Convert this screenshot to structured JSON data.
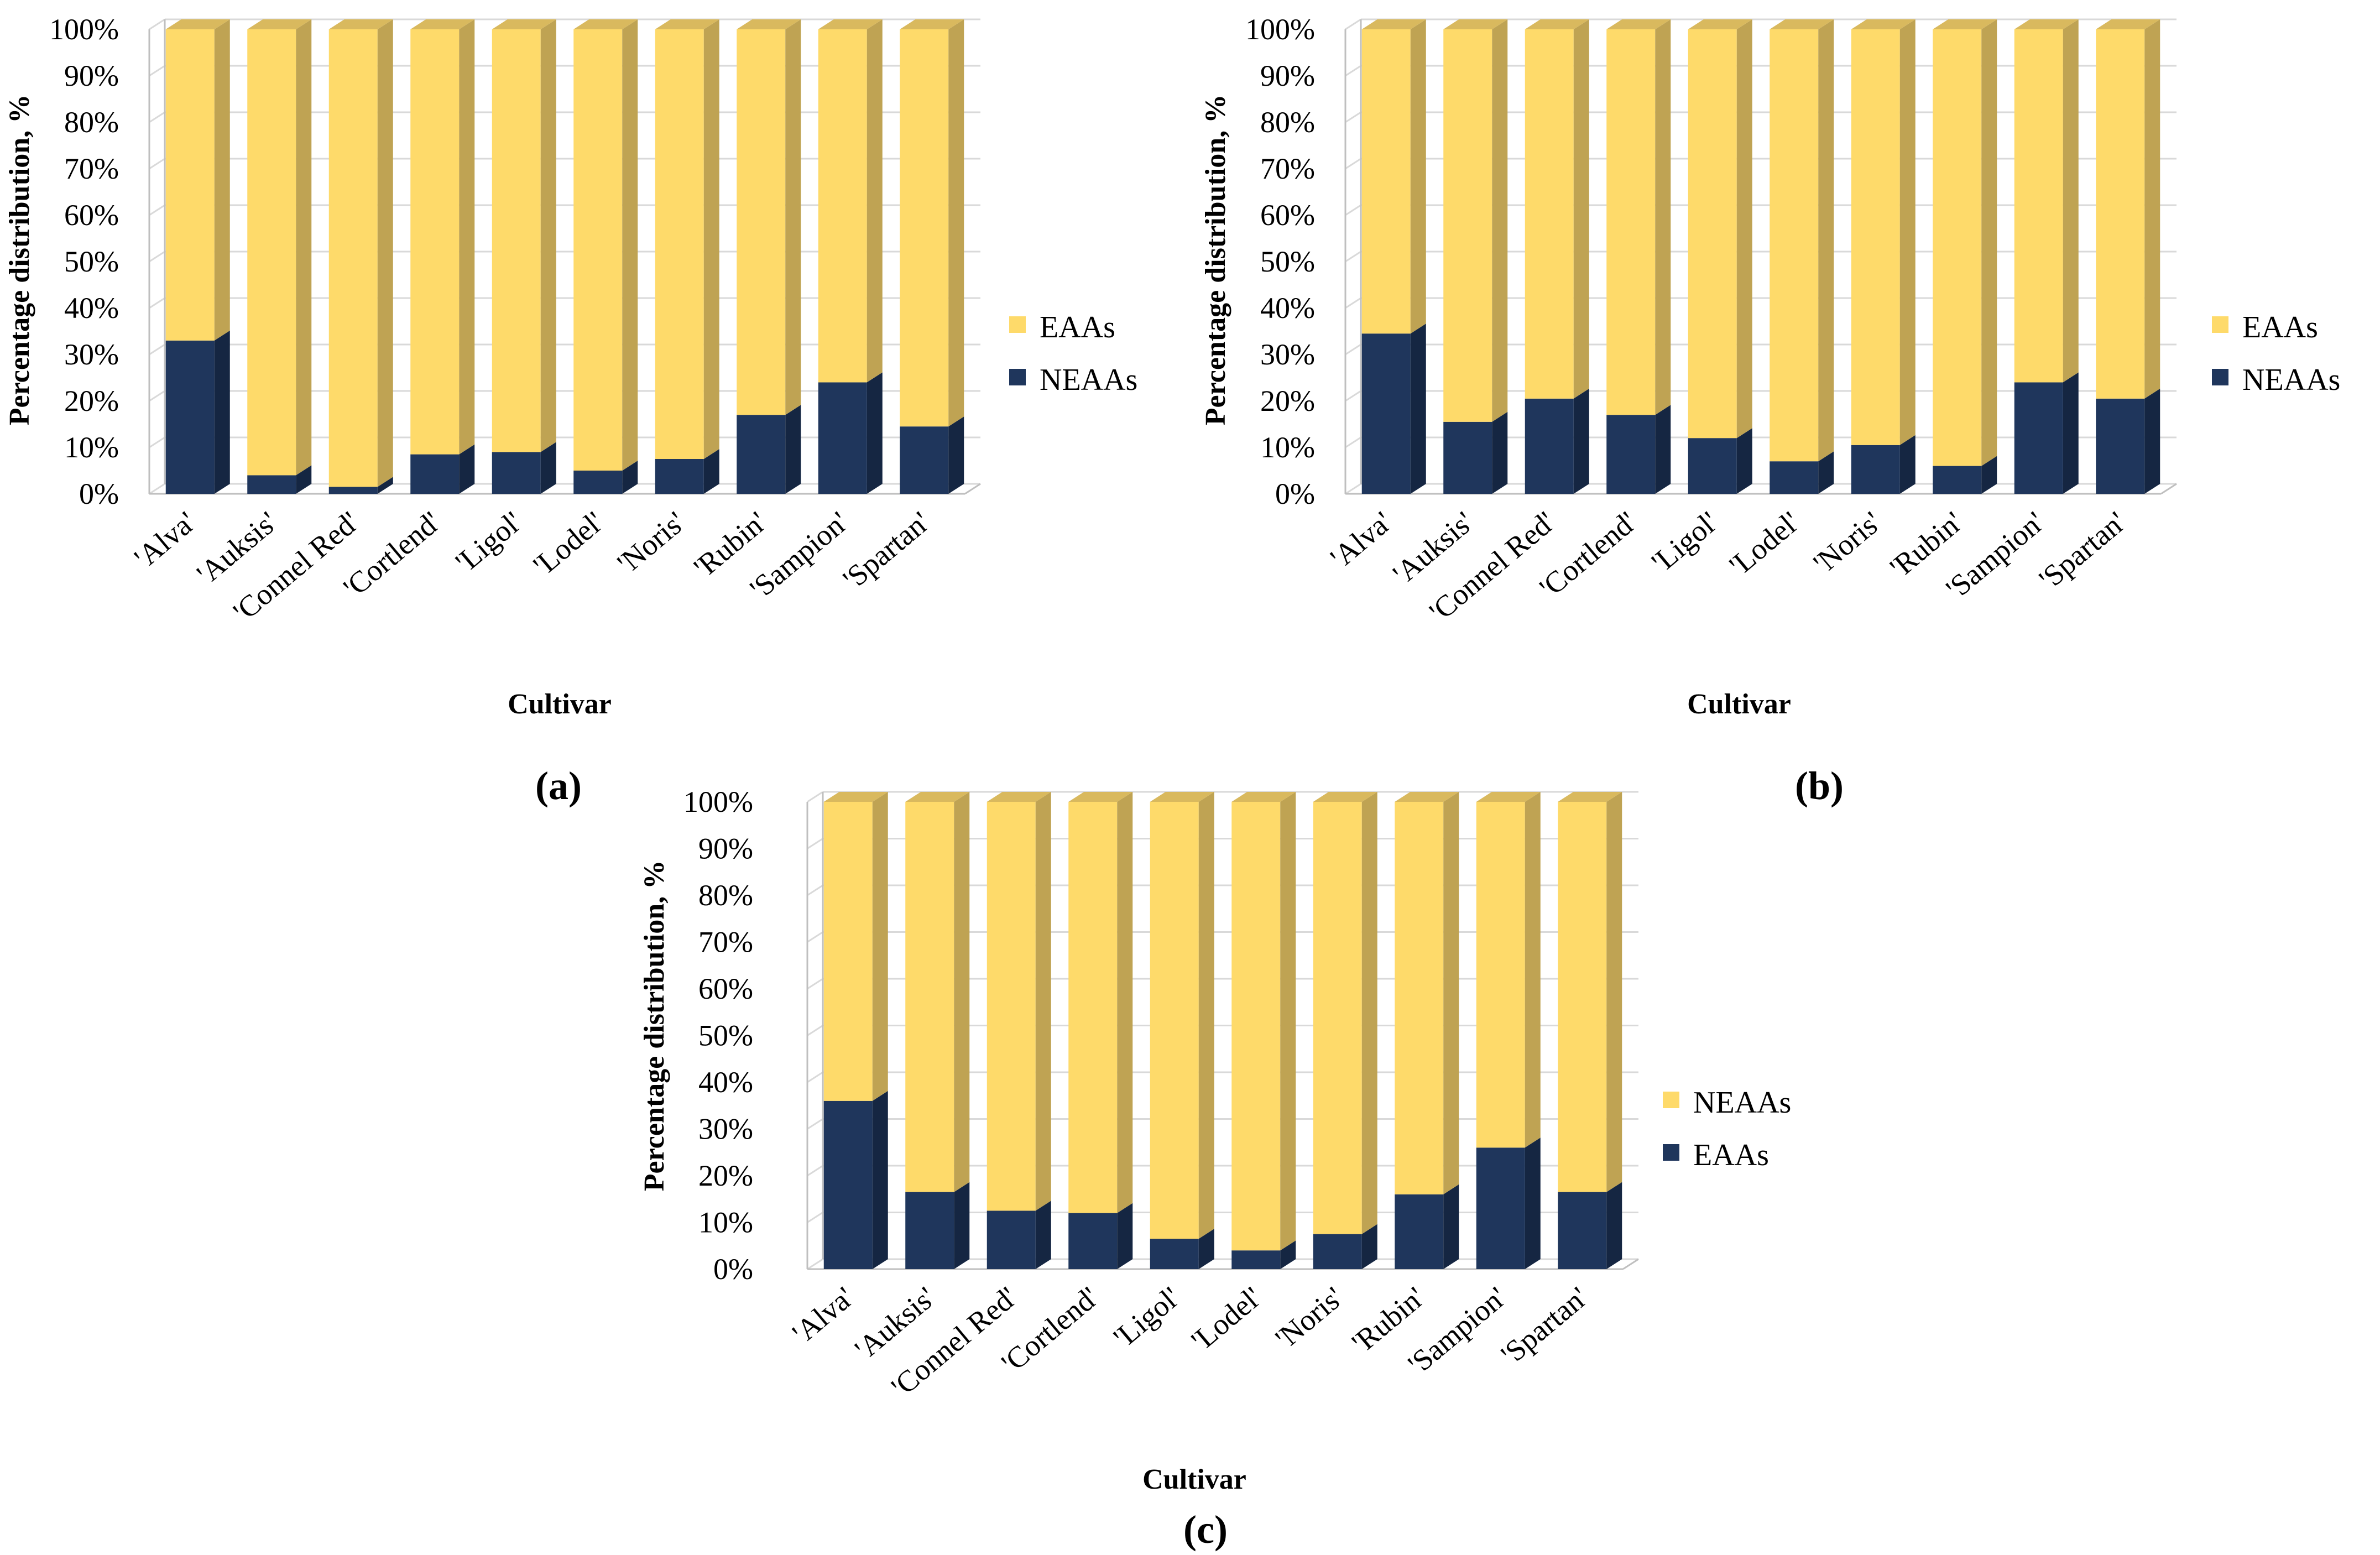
{
  "colors": {
    "yellow_front": "#FEDA6A",
    "yellow_side": "#BFA353",
    "yellow_top": "#D9B95E",
    "navy_front": "#1F365C",
    "navy_side": "#152642",
    "navy_top": "#24406B",
    "grid": "#D9D9D9",
    "axis": "#BFBFBF"
  },
  "chart_data": [
    {
      "type": "bar",
      "stacked": true,
      "panel_label": "(a)",
      "xlabel": "Cultivar",
      "ylabel": "Percentage distribution, %",
      "ylim": [
        0,
        100
      ],
      "ytick_labels": [
        "0%",
        "10%",
        "20%",
        "30%",
        "40%",
        "50%",
        "60%",
        "70%",
        "80%",
        "90%",
        "100%"
      ],
      "categories": [
        "'Alva'",
        "'Auksis'",
        "'Connel Red'",
        "'Cortlend'",
        "'Ligol'",
        "'Lodel'",
        "'Noris'",
        "'Rubin'",
        "'Sampion'",
        "'Spartan'"
      ],
      "series": [
        {
          "name": "NEAAs",
          "color_key": "navy",
          "values": [
            33,
            4,
            1.5,
            8.5,
            9,
            5,
            7.5,
            17,
            24,
            14.5
          ]
        },
        {
          "name": "EAAs",
          "color_key": "yellow",
          "values": [
            67,
            96,
            98.5,
            91.5,
            91,
            95,
            92.5,
            83,
            76,
            85.5
          ]
        }
      ],
      "legend": {
        "position": "right",
        "entries": [
          {
            "name": "EAAs",
            "color_key": "yellow"
          },
          {
            "name": "NEAAs",
            "color_key": "navy"
          }
        ]
      }
    },
    {
      "type": "bar",
      "stacked": true,
      "panel_label": "(b)",
      "xlabel": "Cultivar",
      "ylabel": "Percentage distribution, %",
      "ylim": [
        0,
        100
      ],
      "ytick_labels": [
        "0%",
        "10%",
        "20%",
        "30%",
        "40%",
        "50%",
        "60%",
        "70%",
        "80%",
        "90%",
        "100%"
      ],
      "categories": [
        "'Alva'",
        "'Auksis'",
        "'Connel Red'",
        "'Cortlend'",
        "'Ligol'",
        "'Lodel'",
        "'Noris'",
        "'Rubin'",
        "'Sampion'",
        "'Spartan'"
      ],
      "series": [
        {
          "name": "NEAAs",
          "color_key": "navy",
          "values": [
            34.5,
            15.5,
            20.5,
            17,
            12,
            7,
            10.5,
            6,
            24,
            20.5
          ]
        },
        {
          "name": "EAAs",
          "color_key": "yellow",
          "values": [
            65.5,
            84.5,
            79.5,
            83,
            88,
            93,
            89.5,
            94,
            76,
            79.5
          ]
        }
      ],
      "legend": {
        "position": "right",
        "entries": [
          {
            "name": "EAAs",
            "color_key": "yellow"
          },
          {
            "name": "NEAAs",
            "color_key": "navy"
          }
        ]
      }
    },
    {
      "type": "bar",
      "stacked": true,
      "panel_label": "(c)",
      "xlabel": "Cultivar",
      "ylabel": "Percentage distribution, %",
      "ylim": [
        0,
        100
      ],
      "ytick_labels": [
        "0%",
        "10%",
        "20%",
        "30%",
        "40%",
        "50%",
        "60%",
        "70%",
        "80%",
        "90%",
        "100%"
      ],
      "categories": [
        "'Alva'",
        "'Auksis'",
        "'Connel Red'",
        "'Cortlend'",
        "'Ligol'",
        "'Lodel'",
        "'Noris'",
        "'Rubin'",
        "'Sampion'",
        "'Spartan'"
      ],
      "series": [
        {
          "name": "EAAs",
          "color_key": "navy",
          "values": [
            36,
            16.5,
            12.5,
            12,
            6.5,
            4,
            7.5,
            16,
            26,
            16.5
          ]
        },
        {
          "name": "NEAAs",
          "color_key": "yellow",
          "values": [
            64,
            83.5,
            87.5,
            88,
            93.5,
            96,
            92.5,
            84,
            74,
            83.5
          ]
        }
      ],
      "legend": {
        "position": "right",
        "entries": [
          {
            "name": "NEAAs",
            "color_key": "yellow"
          },
          {
            "name": "EAAs",
            "color_key": "navy"
          }
        ]
      }
    }
  ]
}
